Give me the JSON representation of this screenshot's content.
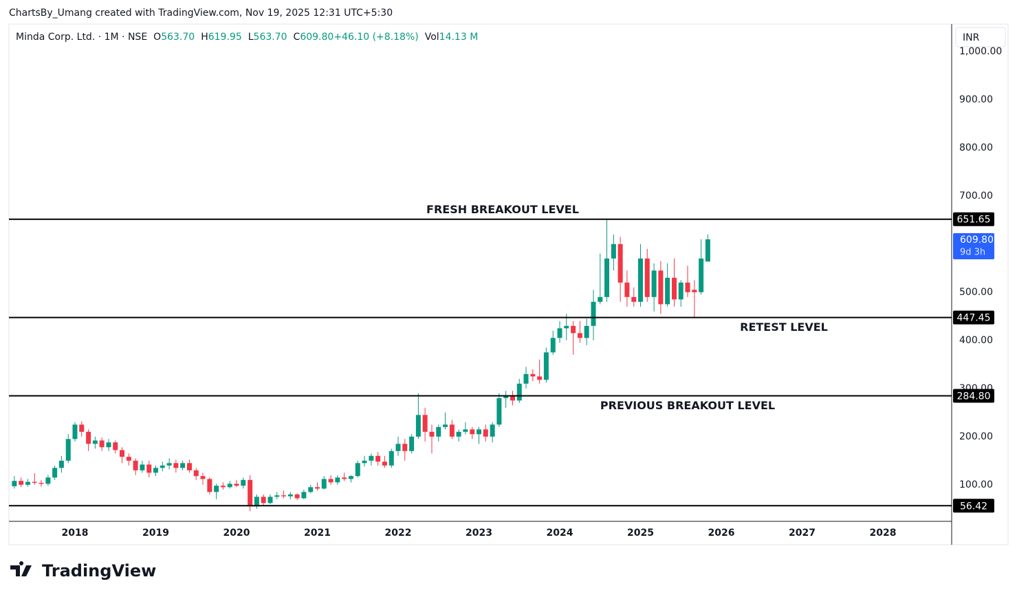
{
  "header": "ChartsBy_Umang created with TradingView.com, Nov 19, 2025 12:31 UTC+5:30",
  "watermark": "TradingView",
  "chart_data": {
    "type": "candlestick",
    "symbol": "Minda Corp. Ltd. · 1M · NSE",
    "legend": [
      {
        "key": "O",
        "value": "563.70"
      },
      {
        "key": "H",
        "value": "619.95"
      },
      {
        "key": "L",
        "value": "563.70"
      },
      {
        "key": "C",
        "value": "609.80"
      },
      {
        "key": "",
        "value": "+46.10 (+8.18%)"
      },
      {
        "key": "Vol",
        "value": "14.13 M"
      }
    ],
    "currency": "INR",
    "up_color": "#089981",
    "down_color": "#f23645",
    "x": [
      2017.25,
      2017.333,
      2017.417,
      2017.5,
      2017.583,
      2017.667,
      2017.75,
      2017.833,
      2017.917,
      2018,
      2018.083,
      2018.167,
      2018.25,
      2018.333,
      2018.417,
      2018.5,
      2018.583,
      2018.667,
      2018.75,
      2018.833,
      2018.917,
      2019,
      2019.083,
      2019.167,
      2019.25,
      2019.333,
      2019.417,
      2019.5,
      2019.583,
      2019.667,
      2019.75,
      2019.833,
      2019.917,
      2020,
      2020.083,
      2020.167,
      2020.25,
      2020.333,
      2020.417,
      2020.5,
      2020.583,
      2020.667,
      2020.75,
      2020.833,
      2020.917,
      2021,
      2021.083,
      2021.167,
      2021.25,
      2021.333,
      2021.417,
      2021.5,
      2021.583,
      2021.667,
      2021.75,
      2021.833,
      2021.917,
      2022,
      2022.083,
      2022.167,
      2022.25,
      2022.333,
      2022.417,
      2022.5,
      2022.583,
      2022.667,
      2022.75,
      2022.833,
      2022.917,
      2023,
      2023.083,
      2023.167,
      2023.25,
      2023.333,
      2023.417,
      2023.5,
      2023.583,
      2023.667,
      2023.75,
      2023.833,
      2023.917,
      2024,
      2024.083,
      2024.167,
      2024.25,
      2024.333,
      2024.417,
      2024.5,
      2024.583,
      2024.667,
      2024.75,
      2024.833,
      2024.917,
      2025,
      2025.083,
      2025.167,
      2025.25,
      2025.333,
      2025.417,
      2025.5,
      2025.583,
      2025.667,
      2025.75,
      2025.833
    ],
    "open": [
      97,
      108,
      100,
      106,
      104,
      102,
      115,
      135,
      150,
      195,
      225,
      210,
      185,
      192,
      178,
      188,
      172,
      158,
      150,
      130,
      142,
      125,
      135,
      140,
      145,
      135,
      145,
      130,
      118,
      112,
      85,
      98,
      95,
      102,
      98,
      110,
      55,
      75,
      62,
      75,
      78,
      76,
      80,
      72,
      85,
      95,
      92,
      112,
      105,
      115,
      112,
      118,
      145,
      150,
      160,
      148,
      140,
      170,
      185,
      170,
      200,
      245,
      210,
      200,
      220,
      225,
      200,
      210,
      215,
      205,
      215,
      200,
      225,
      280,
      285,
      275,
      310,
      330,
      325,
      318,
      375,
      405,
      425,
      430,
      415,
      405,
      430,
      480,
      490,
      570,
      600,
      520,
      490,
      480,
      570,
      490,
      545,
      475,
      530,
      485,
      520,
      505,
      500,
      563.7
    ],
    "high": [
      118,
      115,
      112,
      124,
      110,
      120,
      140,
      160,
      205,
      230,
      232,
      215,
      200,
      198,
      195,
      192,
      178,
      165,
      155,
      150,
      150,
      140,
      148,
      155,
      152,
      150,
      152,
      135,
      125,
      115,
      102,
      105,
      108,
      110,
      115,
      120,
      80,
      80,
      80,
      85,
      88,
      85,
      82,
      90,
      100,
      105,
      118,
      120,
      120,
      125,
      120,
      150,
      160,
      165,
      168,
      160,
      175,
      200,
      195,
      205,
      290,
      260,
      225,
      225,
      250,
      235,
      215,
      230,
      220,
      220,
      225,
      230,
      290,
      295,
      295,
      320,
      345,
      340,
      360,
      385,
      420,
      440,
      455,
      440,
      440,
      445,
      505,
      580,
      651.65,
      620,
      615,
      545,
      510,
      600,
      590,
      560,
      565,
      560,
      570,
      525,
      555,
      525,
      610,
      619.95
    ],
    "low": [
      92,
      95,
      96,
      100,
      96,
      98,
      110,
      125,
      145,
      190,
      200,
      170,
      175,
      170,
      170,
      165,
      145,
      140,
      120,
      125,
      115,
      118,
      128,
      132,
      125,
      130,
      125,
      110,
      100,
      80,
      70,
      90,
      92,
      95,
      92,
      45,
      50,
      56,
      60,
      70,
      72,
      70,
      68,
      70,
      82,
      88,
      90,
      100,
      100,
      108,
      105,
      115,
      138,
      140,
      140,
      135,
      135,
      160,
      150,
      165,
      195,
      190,
      165,
      190,
      215,
      195,
      190,
      205,
      195,
      185,
      190,
      188,
      220,
      260,
      265,
      270,
      300,
      315,
      310,
      312,
      370,
      395,
      400,
      370,
      395,
      390,
      400,
      475,
      480,
      545,
      480,
      470,
      470,
      470,
      480,
      460,
      455,
      470,
      470,
      470,
      490,
      447.45,
      495,
      563.7
    ],
    "close": [
      108,
      100,
      106,
      104,
      102,
      115,
      135,
      150,
      195,
      225,
      210,
      185,
      192,
      178,
      188,
      172,
      158,
      150,
      130,
      142,
      125,
      135,
      140,
      145,
      135,
      145,
      130,
      118,
      112,
      85,
      98,
      95,
      102,
      98,
      110,
      55,
      75,
      62,
      75,
      78,
      76,
      80,
      72,
      85,
      95,
      92,
      112,
      105,
      115,
      112,
      118,
      145,
      150,
      160,
      148,
      140,
      170,
      185,
      170,
      200,
      245,
      210,
      200,
      220,
      225,
      200,
      210,
      215,
      205,
      215,
      200,
      225,
      280,
      285,
      275,
      310,
      330,
      325,
      318,
      375,
      405,
      425,
      430,
      415,
      405,
      430,
      480,
      490,
      570,
      600,
      520,
      490,
      480,
      570,
      490,
      545,
      475,
      530,
      485,
      520,
      500,
      500,
      570,
      609.8
    ],
    "xlim": [
      2017.183,
      2028.851
    ],
    "xticks": [
      2018,
      2019,
      2020,
      2021,
      2022,
      2023,
      2024,
      2025,
      2026,
      2027,
      2028
    ],
    "ylim": [
      24,
      1057
    ],
    "yticks": [
      {
        "value": 100,
        "label": "100.00"
      },
      {
        "value": 200,
        "label": "200.00"
      },
      {
        "value": 300,
        "label": "300.00"
      },
      {
        "value": 400,
        "label": "400.00"
      },
      {
        "value": 500,
        "label": "500.00"
      },
      {
        "value": 600,
        "label": "600.00"
      },
      {
        "value": 700,
        "label": "700.00"
      },
      {
        "value": 800,
        "label": "800.00"
      },
      {
        "value": 900,
        "label": "900.00"
      },
      {
        "value": 1000,
        "label": "1,000.00"
      }
    ],
    "grid": false,
    "levels": [
      {
        "value": 651.65,
        "label": "651.65",
        "name": "FRESH BREAKOUT LEVEL"
      },
      {
        "value": 447.45,
        "label": "447.45",
        "name": "RETEST LEVEL"
      },
      {
        "value": 284.8,
        "label": "284.80",
        "name": "PREVIOUS BREAKOUT LEVEL"
      },
      {
        "value": 56.42,
        "label": "56.42"
      }
    ],
    "last_price": {
      "value": 609.8,
      "label": "609.80",
      "countdown": "9d 3h",
      "color": "#2962ff"
    }
  }
}
